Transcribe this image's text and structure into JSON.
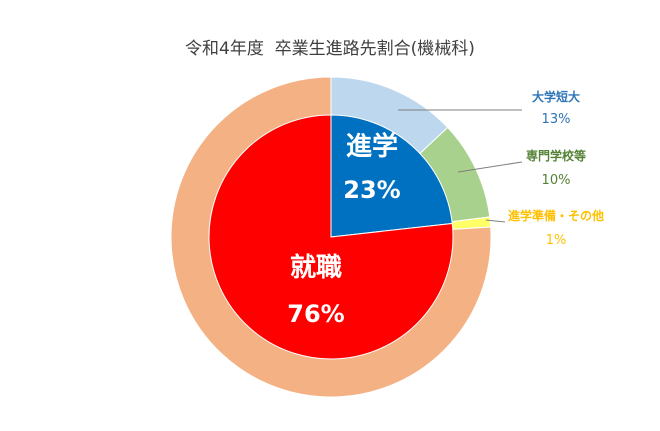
{
  "chart_data": {
    "type": "pie",
    "title": "令和4年度  卒業生進路先割合(機械科)",
    "inner": {
      "slices": [
        {
          "label": "進学",
          "value": 23,
          "value_label": "23%",
          "color": "#0070C0"
        },
        {
          "label": "就職",
          "value": 76,
          "value_label": "76%",
          "color": "#FF0000"
        }
      ]
    },
    "outer": {
      "slices": [
        {
          "label": "大学短大",
          "value": 13,
          "value_label": "13%",
          "color": "#BDD7EE",
          "text_color": "#2E75B6"
        },
        {
          "label": "専門学校等",
          "value": 10,
          "value_label": "10%",
          "color": "#A9D18E",
          "text_color": "#548235"
        },
        {
          "label": "進学準備・その他",
          "value": 1,
          "value_label": "1%",
          "color": "#FFFF66",
          "text_color": "#FFC000"
        },
        {
          "label": "",
          "value": 76,
          "value_label": "",
          "color": "#F4B183"
        }
      ]
    }
  }
}
